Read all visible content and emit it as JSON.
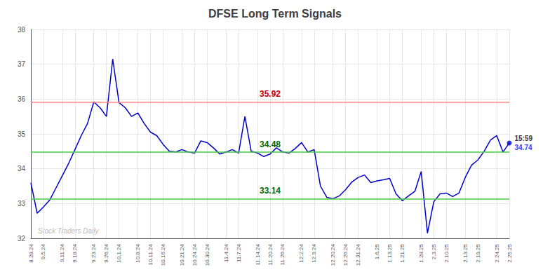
{
  "chart_data": {
    "type": "line",
    "title": "DFSE Long Term Signals",
    "categories": [
      "8.28.24",
      null,
      "9.5.24",
      null,
      null,
      "9.11.24",
      null,
      "9.18.24",
      null,
      null,
      "9.23.24",
      null,
      "9.26.24",
      null,
      "10.1.24",
      null,
      null,
      "10.8.24",
      null,
      "10.11.24",
      null,
      "10.16.24",
      null,
      null,
      "10.21.24",
      null,
      "10.24.24",
      null,
      "10.30.24",
      null,
      null,
      "11.4.24",
      null,
      "11.7.24",
      null,
      null,
      "11.14.24",
      null,
      "11.20.24",
      null,
      "11.26.24",
      null,
      null,
      "12.2.24",
      null,
      "12.9.24",
      null,
      null,
      "12.20.24",
      null,
      "12.26.24",
      null,
      "12.31.24",
      null,
      null,
      "1.6.25",
      null,
      "1.13.25",
      null,
      "1.21.25",
      null,
      null,
      "1.28.25",
      null,
      "2.3.25",
      null,
      "2.10.25",
      null,
      null,
      "2.13.25",
      null,
      "2.19.25",
      null,
      null,
      "2.24.25",
      null,
      "2.25.25"
    ],
    "values": [
      33.6,
      32.72,
      32.9,
      33.1,
      33.45,
      33.8,
      34.15,
      34.55,
      34.95,
      35.3,
      35.92,
      35.75,
      35.5,
      37.15,
      35.9,
      35.75,
      35.5,
      35.6,
      35.3,
      35.05,
      34.95,
      34.7,
      34.5,
      34.48,
      34.55,
      34.48,
      34.45,
      34.8,
      34.75,
      34.6,
      34.42,
      34.48,
      34.55,
      34.45,
      35.5,
      34.5,
      34.45,
      34.35,
      34.42,
      34.6,
      34.48,
      34.45,
      34.58,
      34.75,
      34.48,
      34.55,
      33.5,
      33.18,
      33.14,
      33.22,
      33.4,
      33.62,
      33.75,
      33.82,
      33.6,
      33.65,
      33.68,
      33.72,
      33.28,
      33.08,
      33.22,
      33.35,
      33.92,
      32.15,
      33.05,
      33.28,
      33.3,
      33.2,
      33.3,
      33.75,
      34.1,
      34.25,
      34.5,
      34.82,
      34.95,
      34.48,
      34.74
    ],
    "color": "#0000cc",
    "ylim": [
      32,
      38
    ],
    "yticks": [
      32,
      33,
      34,
      35,
      36,
      37,
      38
    ],
    "grid": true,
    "annotations": [
      {
        "value": 35.92,
        "text": "35.92",
        "color": "#cc0000",
        "line_color": "#ff8888"
      },
      {
        "value": 34.48,
        "text": "34.48",
        "color": "#006600",
        "line_color": "#44cc44"
      },
      {
        "value": 33.14,
        "text": "33.14",
        "color": "#006600",
        "line_color": "#44cc44"
      }
    ],
    "last_point": {
      "label": "15:59",
      "value_label": "34.74",
      "color": "#0000ff"
    },
    "watermark": "Stock Traders Daily"
  }
}
